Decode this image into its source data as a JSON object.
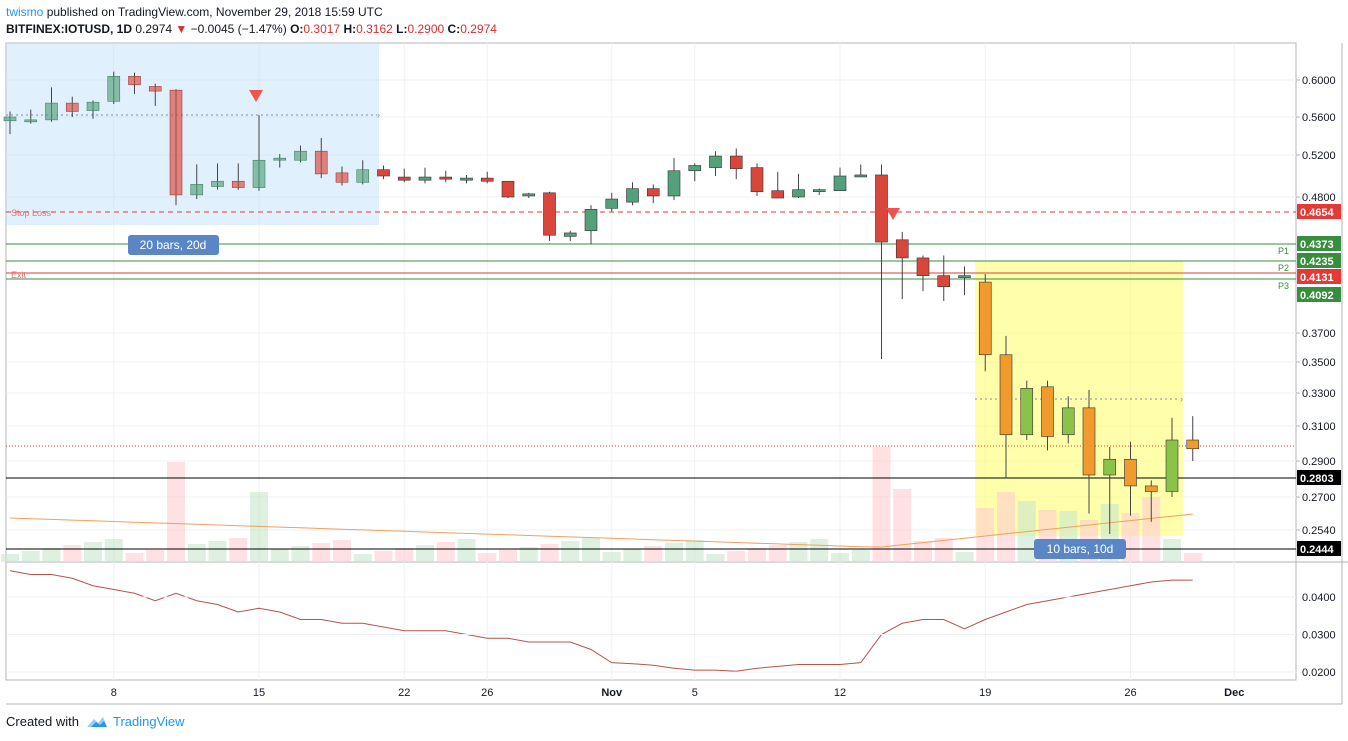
{
  "header": {
    "author": "twismo",
    "published": "published on TradingView.com, November 29, 2018 15:59 UTC",
    "symbol": "BITFINEX:IOTUSD, 1D",
    "last": "0.2974",
    "change": "−0.0045 (−1.47%)",
    "o_label": "O:",
    "o": "0.3017",
    "h_label": "H:",
    "h": "0.3162",
    "l_label": "L:",
    "l": "0.2900",
    "c_label": "C:",
    "c": "0.2974"
  },
  "footer": {
    "created_with": "Created with",
    "brand": "TradingView"
  },
  "colors": {
    "up": "#53a07a",
    "down": "#d9473c",
    "up_alt": "#8bc34a",
    "down_alt": "#f29a2e",
    "accent": "#2196f3"
  },
  "chart_data": {
    "type": "candlestick",
    "price_axis": {
      "ticks": [
        "0.6000",
        "0.5600",
        "0.5200",
        "0.4800",
        "0.3700",
        "0.3500",
        "0.3300",
        "0.3100",
        "0.2900",
        "0.2700",
        "0.2540"
      ],
      "highlighted": [
        {
          "value": "0.4654",
          "color": "#e53935"
        },
        {
          "value": "0.4373",
          "color": "#388e3c"
        },
        {
          "value": "0.4235",
          "color": "#388e3c"
        },
        {
          "value": "0.4131",
          "color": "#e53935"
        },
        {
          "value": "0.4092",
          "color": "#388e3c"
        },
        {
          "value": "0.2803",
          "color": "#000000"
        },
        {
          "value": "0.2444",
          "color": "#000000"
        }
      ]
    },
    "x_ticks": [
      "8",
      "15",
      "22",
      "26",
      "Nov",
      "5",
      "12",
      "19",
      "26",
      "Dec"
    ],
    "candles": [
      {
        "o": 0.556,
        "h": 0.566,
        "l": 0.542,
        "c": 0.56
      },
      {
        "o": 0.555,
        "h": 0.568,
        "l": 0.553,
        "c": 0.557
      },
      {
        "o": 0.557,
        "h": 0.592,
        "l": 0.555,
        "c": 0.575
      },
      {
        "o": 0.575,
        "h": 0.582,
        "l": 0.56,
        "c": 0.566
      },
      {
        "o": 0.567,
        "h": 0.578,
        "l": 0.558,
        "c": 0.576
      },
      {
        "o": 0.577,
        "h": 0.609,
        "l": 0.574,
        "c": 0.604
      },
      {
        "o": 0.604,
        "h": 0.608,
        "l": 0.585,
        "c": 0.595
      },
      {
        "o": 0.593,
        "h": 0.596,
        "l": 0.572,
        "c": 0.588
      },
      {
        "o": 0.589,
        "h": 0.59,
        "l": 0.472,
        "c": 0.482
      },
      {
        "o": 0.482,
        "h": 0.511,
        "l": 0.478,
        "c": 0.492
      },
      {
        "o": 0.49,
        "h": 0.512,
        "l": 0.487,
        "c": 0.495
      },
      {
        "o": 0.495,
        "h": 0.512,
        "l": 0.487,
        "c": 0.489
      },
      {
        "o": 0.489,
        "h": 0.562,
        "l": 0.486,
        "c": 0.515
      },
      {
        "o": 0.516,
        "h": 0.521,
        "l": 0.508,
        "c": 0.517
      },
      {
        "o": 0.515,
        "h": 0.53,
        "l": 0.513,
        "c": 0.524
      },
      {
        "o": 0.524,
        "h": 0.538,
        "l": 0.498,
        "c": 0.502
      },
      {
        "o": 0.503,
        "h": 0.509,
        "l": 0.491,
        "c": 0.494
      },
      {
        "o": 0.494,
        "h": 0.515,
        "l": 0.492,
        "c": 0.506
      },
      {
        "o": 0.506,
        "h": 0.51,
        "l": 0.497,
        "c": 0.5
      },
      {
        "o": 0.499,
        "h": 0.507,
        "l": 0.494,
        "c": 0.496
      },
      {
        "o": 0.496,
        "h": 0.508,
        "l": 0.493,
        "c": 0.499
      },
      {
        "o": 0.499,
        "h": 0.505,
        "l": 0.494,
        "c": 0.497
      },
      {
        "o": 0.496,
        "h": 0.501,
        "l": 0.493,
        "c": 0.498
      },
      {
        "o": 0.498,
        "h": 0.504,
        "l": 0.493,
        "c": 0.495
      },
      {
        "o": 0.495,
        "h": 0.495,
        "l": 0.479,
        "c": 0.48
      },
      {
        "o": 0.481,
        "h": 0.484,
        "l": 0.479,
        "c": 0.483
      },
      {
        "o": 0.484,
        "h": 0.485,
        "l": 0.44,
        "c": 0.445
      },
      {
        "o": 0.444,
        "h": 0.449,
        "l": 0.44,
        "c": 0.447
      },
      {
        "o": 0.449,
        "h": 0.472,
        "l": 0.437,
        "c": 0.468
      },
      {
        "o": 0.469,
        "h": 0.484,
        "l": 0.466,
        "c": 0.478
      },
      {
        "o": 0.475,
        "h": 0.494,
        "l": 0.472,
        "c": 0.488
      },
      {
        "o": 0.488,
        "h": 0.492,
        "l": 0.474,
        "c": 0.481
      },
      {
        "o": 0.481,
        "h": 0.517,
        "l": 0.477,
        "c": 0.505
      },
      {
        "o": 0.505,
        "h": 0.512,
        "l": 0.495,
        "c": 0.51
      },
      {
        "o": 0.508,
        "h": 0.524,
        "l": 0.5,
        "c": 0.519
      },
      {
        "o": 0.519,
        "h": 0.527,
        "l": 0.497,
        "c": 0.507
      },
      {
        "o": 0.508,
        "h": 0.512,
        "l": 0.481,
        "c": 0.485
      },
      {
        "o": 0.486,
        "h": 0.504,
        "l": 0.479,
        "c": 0.479
      },
      {
        "o": 0.48,
        "h": 0.502,
        "l": 0.479,
        "c": 0.487
      },
      {
        "o": 0.486,
        "h": 0.488,
        "l": 0.482,
        "c": 0.487
      },
      {
        "o": 0.486,
        "h": 0.508,
        "l": 0.486,
        "c": 0.5
      },
      {
        "o": 0.5,
        "h": 0.511,
        "l": 0.499,
        "c": 0.501
      },
      {
        "o": 0.501,
        "h": 0.511,
        "l": 0.352,
        "c": 0.439
      },
      {
        "o": 0.441,
        "h": 0.448,
        "l": 0.405,
        "c": 0.426
      },
      {
        "o": 0.426,
        "h": 0.428,
        "l": 0.41,
        "c": 0.414
      },
      {
        "o": 0.414,
        "h": 0.428,
        "l": 0.403,
        "c": 0.411
      },
      {
        "o": 0.414,
        "h": 0.42,
        "l": 0.409,
        "c": 0.414
      },
      {
        "o": 0.412,
        "h": 0.415,
        "l": 0.344,
        "c": 0.355
      },
      {
        "o": 0.355,
        "h": 0.368,
        "l": 0.28,
        "c": 0.305
      },
      {
        "o": 0.305,
        "h": 0.338,
        "l": 0.302,
        "c": 0.333
      },
      {
        "o": 0.334,
        "h": 0.338,
        "l": 0.296,
        "c": 0.304
      },
      {
        "o": 0.305,
        "h": 0.328,
        "l": 0.3,
        "c": 0.321
      },
      {
        "o": 0.321,
        "h": 0.332,
        "l": 0.262,
        "c": 0.282
      },
      {
        "o": 0.282,
        "h": 0.298,
        "l": 0.252,
        "c": 0.291
      },
      {
        "o": 0.291,
        "h": 0.301,
        "l": 0.261,
        "c": 0.276
      },
      {
        "o": 0.276,
        "h": 0.279,
        "l": 0.258,
        "c": 0.273
      },
      {
        "o": 0.273,
        "h": 0.315,
        "l": 0.27,
        "c": 0.302
      },
      {
        "o": 0.302,
        "h": 0.316,
        "l": 0.29,
        "c": 0.297
      }
    ],
    "atr": [
      0.047,
      0.046,
      0.046,
      0.045,
      0.043,
      0.042,
      0.041,
      0.039,
      0.041,
      0.039,
      0.038,
      0.036,
      0.037,
      0.036,
      0.034,
      0.034,
      0.033,
      0.033,
      0.032,
      0.031,
      0.031,
      0.031,
      0.03,
      0.029,
      0.029,
      0.028,
      0.028,
      0.028,
      0.026,
      0.0225,
      0.0222,
      0.0218,
      0.021,
      0.0205,
      0.0205,
      0.0202,
      0.021,
      0.0215,
      0.022,
      0.022,
      0.022,
      0.0225,
      0.03,
      0.033,
      0.034,
      0.034,
      0.0315,
      0.034,
      0.036,
      0.038,
      0.039,
      0.04,
      0.041,
      0.042,
      0.043,
      0.044,
      0.0445,
      0.0445
    ],
    "atr_ticks": [
      "0.0400",
      "0.0300",
      "0.0200"
    ],
    "annotations": {
      "stop_loss": "Stop Loss",
      "exit": "Exit",
      "p1": "P1",
      "p2": "P2",
      "p3": "P3",
      "range1": "20 bars, 20d",
      "range2": "10 bars, 10d"
    }
  }
}
